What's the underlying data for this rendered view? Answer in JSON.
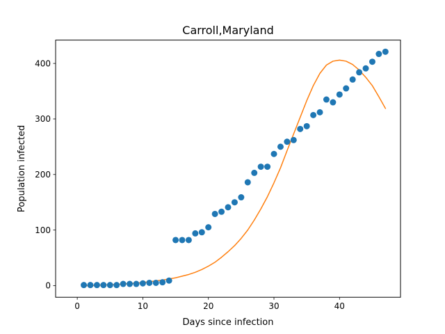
{
  "chart_data": {
    "type": "scatter",
    "title": "Carroll,Maryland",
    "xlabel": "Days since infection",
    "ylabel": "Population infected",
    "xlim": [
      -3.3,
      49.3
    ],
    "ylim": [
      -21,
      442
    ],
    "xticks": [
      0,
      10,
      20,
      30,
      40
    ],
    "yticks": [
      0,
      100,
      200,
      300,
      400
    ],
    "grid": false,
    "legend": "none",
    "series": [
      {
        "kind": "scatter",
        "color": "#1f77b4",
        "x": [
          1,
          2,
          3,
          4,
          5,
          6,
          7,
          8,
          9,
          10,
          11,
          12,
          13,
          14,
          15,
          16,
          17,
          18,
          19,
          20,
          21,
          22,
          23,
          24,
          25,
          26,
          27,
          28,
          29,
          30,
          31,
          32,
          33,
          34,
          35,
          36,
          37,
          38,
          39,
          40,
          41,
          42,
          43,
          44,
          45,
          46,
          47
        ],
        "y": [
          1,
          1,
          1,
          1,
          1,
          1,
          3,
          3,
          3,
          4,
          5,
          5,
          6,
          9,
          82,
          82,
          82,
          94,
          96,
          105,
          129,
          133,
          141,
          150,
          159,
          186,
          203,
          214,
          214,
          237,
          250,
          259,
          262,
          282,
          287,
          307,
          312,
          335,
          330,
          344,
          355,
          371,
          384,
          391,
          403,
          417,
          421
        ]
      },
      {
        "kind": "line",
        "color": "#ff7f0e",
        "x": [
          1,
          2,
          3,
          4,
          5,
          6,
          7,
          8,
          9,
          10,
          11,
          12,
          13,
          14,
          15,
          16,
          17,
          18,
          19,
          20,
          21,
          22,
          23,
          24,
          25,
          26,
          27,
          28,
          29,
          30,
          31,
          32,
          33,
          34,
          35,
          36,
          37,
          38,
          39,
          40,
          41,
          42,
          43,
          44,
          45,
          46,
          47
        ],
        "y": [
          0,
          0,
          0.5,
          1,
          1.5,
          2,
          3,
          3.5,
          4.5,
          5.5,
          7,
          8.5,
          10,
          12,
          14,
          17,
          20,
          24,
          29,
          35,
          42,
          51,
          61,
          72,
          85,
          100,
          118,
          138,
          160,
          185,
          212,
          243,
          273,
          303,
          333,
          360,
          382,
          397,
          404,
          406,
          404,
          398,
          388,
          375,
          360,
          340,
          319
        ]
      }
    ]
  }
}
